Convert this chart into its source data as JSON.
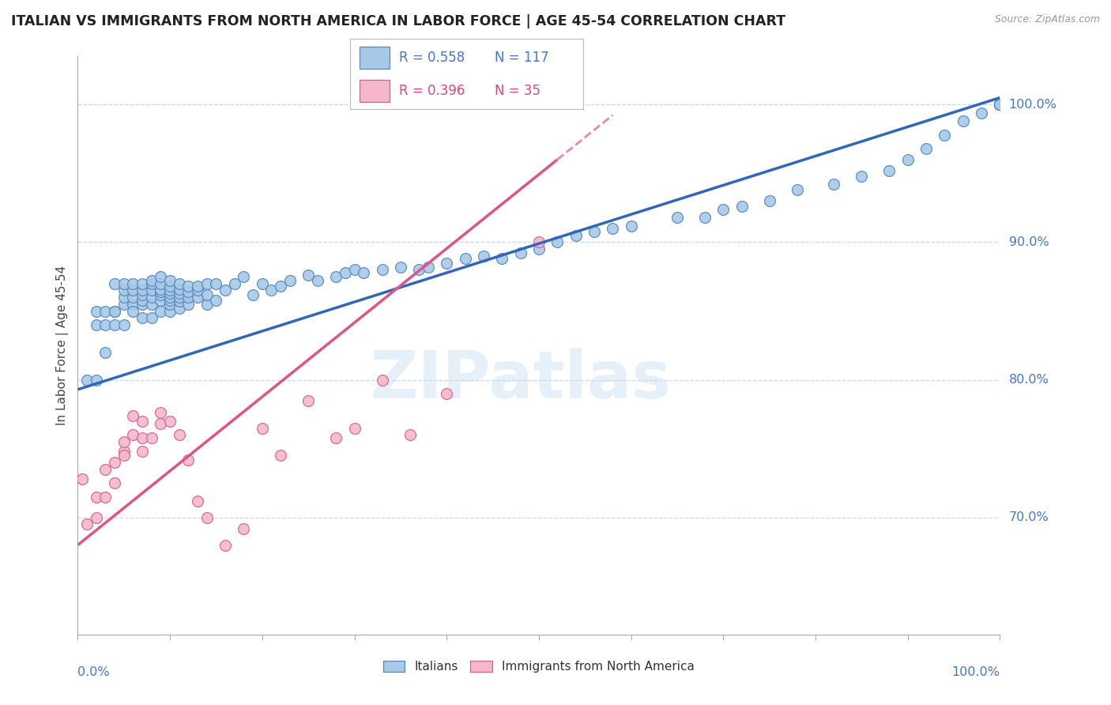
{
  "title": "ITALIAN VS IMMIGRANTS FROM NORTH AMERICA IN LABOR FORCE | AGE 45-54 CORRELATION CHART",
  "source": "Source: ZipAtlas.com",
  "ylabel": "In Labor Force | Age 45-54",
  "xlim": [
    0.0,
    1.0
  ],
  "ylim": [
    0.615,
    1.035
  ],
  "blue_R": 0.558,
  "blue_N": 117,
  "pink_R": 0.396,
  "pink_N": 35,
  "blue_color": "#a8c8e8",
  "blue_edge_color": "#5588bb",
  "pink_color": "#f5b8cb",
  "pink_edge_color": "#d46090",
  "blue_line_color": "#3366bb",
  "pink_line_color": "#dd5588",
  "watermark": "ZIPatlas",
  "legend_label_blue": "Italians",
  "legend_label_pink": "Immigrants from North America",
  "yticks": [
    0.7,
    0.8,
    0.9,
    1.0
  ],
  "ytick_labels": [
    "70.0%",
    "80.0%",
    "90.0%",
    "100.0%"
  ],
  "blue_scatter_x": [
    0.01,
    0.02,
    0.02,
    0.02,
    0.03,
    0.03,
    0.03,
    0.04,
    0.04,
    0.04,
    0.04,
    0.05,
    0.05,
    0.05,
    0.05,
    0.05,
    0.06,
    0.06,
    0.06,
    0.06,
    0.06,
    0.07,
    0.07,
    0.07,
    0.07,
    0.07,
    0.07,
    0.08,
    0.08,
    0.08,
    0.08,
    0.08,
    0.08,
    0.09,
    0.09,
    0.09,
    0.09,
    0.09,
    0.09,
    0.09,
    0.1,
    0.1,
    0.1,
    0.1,
    0.1,
    0.1,
    0.1,
    0.1,
    0.11,
    0.11,
    0.11,
    0.11,
    0.11,
    0.11,
    0.12,
    0.12,
    0.12,
    0.12,
    0.13,
    0.13,
    0.13,
    0.14,
    0.14,
    0.14,
    0.15,
    0.15,
    0.16,
    0.17,
    0.18,
    0.19,
    0.2,
    0.21,
    0.22,
    0.23,
    0.25,
    0.26,
    0.28,
    0.29,
    0.3,
    0.31,
    0.33,
    0.35,
    0.37,
    0.38,
    0.4,
    0.42,
    0.44,
    0.46,
    0.48,
    0.5,
    0.52,
    0.54,
    0.56,
    0.58,
    0.6,
    0.65,
    0.68,
    0.7,
    0.72,
    0.75,
    0.78,
    0.82,
    0.85,
    0.88,
    0.9,
    0.92,
    0.94,
    0.96,
    0.98,
    1.0,
    1.0,
    1.0,
    1.0,
    1.0,
    1.0,
    1.0,
    1.0
  ],
  "blue_scatter_y": [
    0.8,
    0.84,
    0.85,
    0.8,
    0.85,
    0.84,
    0.82,
    0.85,
    0.85,
    0.84,
    0.87,
    0.84,
    0.855,
    0.86,
    0.865,
    0.87,
    0.855,
    0.85,
    0.86,
    0.865,
    0.87,
    0.845,
    0.855,
    0.858,
    0.862,
    0.865,
    0.87,
    0.845,
    0.855,
    0.86,
    0.865,
    0.87,
    0.872,
    0.85,
    0.858,
    0.862,
    0.864,
    0.866,
    0.87,
    0.875,
    0.85,
    0.855,
    0.858,
    0.86,
    0.863,
    0.865,
    0.868,
    0.872,
    0.852,
    0.857,
    0.86,
    0.863,
    0.866,
    0.87,
    0.855,
    0.86,
    0.864,
    0.868,
    0.86,
    0.865,
    0.868,
    0.855,
    0.862,
    0.87,
    0.858,
    0.87,
    0.865,
    0.87,
    0.875,
    0.862,
    0.87,
    0.865,
    0.868,
    0.872,
    0.876,
    0.872,
    0.875,
    0.878,
    0.88,
    0.878,
    0.88,
    0.882,
    0.88,
    0.882,
    0.885,
    0.888,
    0.89,
    0.888,
    0.892,
    0.895,
    0.9,
    0.905,
    0.908,
    0.91,
    0.912,
    0.918,
    0.918,
    0.924,
    0.926,
    0.93,
    0.938,
    0.942,
    0.948,
    0.952,
    0.96,
    0.968,
    0.978,
    0.988,
    0.994,
    1.0,
    1.0,
    1.0,
    1.0,
    1.0,
    1.0,
    1.0,
    1.0
  ],
  "pink_scatter_x": [
    0.005,
    0.01,
    0.02,
    0.02,
    0.03,
    0.03,
    0.04,
    0.04,
    0.05,
    0.05,
    0.05,
    0.06,
    0.06,
    0.07,
    0.07,
    0.07,
    0.08,
    0.09,
    0.09,
    0.1,
    0.11,
    0.12,
    0.13,
    0.14,
    0.16,
    0.18,
    0.2,
    0.22,
    0.25,
    0.28,
    0.3,
    0.33,
    0.36,
    0.4,
    0.5
  ],
  "pink_scatter_y": [
    0.728,
    0.695,
    0.7,
    0.715,
    0.715,
    0.735,
    0.725,
    0.74,
    0.748,
    0.755,
    0.745,
    0.76,
    0.774,
    0.748,
    0.758,
    0.77,
    0.758,
    0.768,
    0.776,
    0.77,
    0.76,
    0.742,
    0.712,
    0.7,
    0.68,
    0.692,
    0.765,
    0.745,
    0.785,
    0.758,
    0.765,
    0.8,
    0.76,
    0.79,
    0.9
  ],
  "blue_line_start_x": 0.0,
  "blue_line_start_y": 0.793,
  "blue_line_end_x": 1.0,
  "blue_line_end_y": 1.005,
  "pink_line_start_x": 0.0,
  "pink_line_start_y": 0.68,
  "pink_line_end_x": 0.52,
  "pink_line_end_y": 0.96
}
